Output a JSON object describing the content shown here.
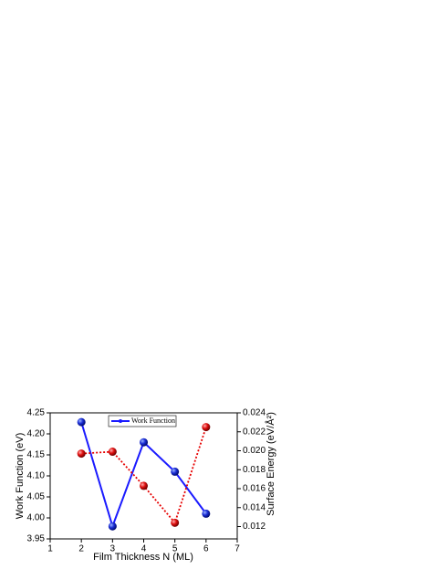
{
  "chart_data": {
    "type": "line",
    "x_label": "Film Thickness N (ML)",
    "y_label": "Work Function (eV)",
    "y2_label": "Surface Energy (eV/Å²)",
    "x": [
      2,
      3,
      4,
      5,
      6
    ],
    "xlim": [
      1,
      7
    ],
    "xticks": [
      1,
      2,
      3,
      4,
      5,
      6,
      7
    ],
    "ylim": [
      3.95,
      4.25
    ],
    "yticks": [
      {
        "value": 3.95,
        "label": "3.95"
      },
      {
        "value": 4,
        "label": "4.00"
      },
      {
        "value": 4.05,
        "label": "4.05"
      },
      {
        "value": 4.1,
        "label": "4.10"
      },
      {
        "value": 4.15,
        "label": "4.15"
      },
      {
        "value": 4.2,
        "label": "4.20"
      },
      {
        "value": 4.25,
        "label": "4.25"
      }
    ],
    "y2lim": [
      0.0107,
      0.024
    ],
    "y2ticks": [
      0.012,
      0.014,
      0.016,
      0.018,
      {
        "value": 0.02,
        "label": "0.020"
      },
      0.022,
      0.024
    ],
    "series": [
      {
        "name": "Work Function",
        "color": "#1a1aff",
        "values": [
          4.228,
          3.98,
          4.18,
          4.11,
          4.01
        ]
      },
      {
        "color": "#e60000",
        "axis": "y2",
        "values": [
          0.0197,
          0.0199,
          0.0163,
          0.0124,
          0.0225
        ]
      }
    ]
  }
}
